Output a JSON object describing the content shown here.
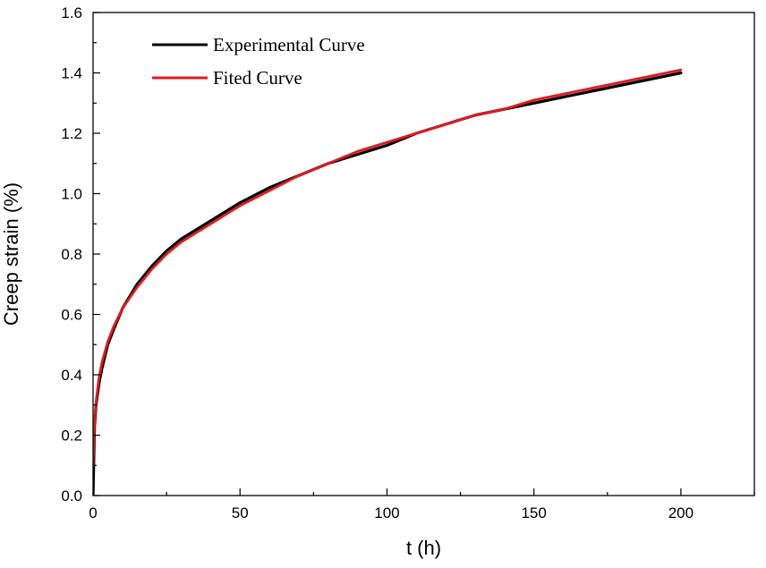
{
  "chart_data": {
    "type": "line",
    "title": "",
    "xlabel": "t (h)",
    "ylabel": "Creep strain (%)",
    "xlim": [
      0,
      225
    ],
    "ylim": [
      0,
      1.6
    ],
    "x_ticks": [
      0,
      50,
      100,
      150,
      200
    ],
    "x_tick_labels": [
      "0",
      "50",
      "100",
      "150",
      "200"
    ],
    "y_ticks": [
      0.0,
      0.2,
      0.4,
      0.6,
      0.8,
      1.0,
      1.2,
      1.4,
      1.6
    ],
    "y_tick_labels": [
      "0.0",
      "0.2",
      "0.4",
      "0.6",
      "0.8",
      "1.0",
      "1.2",
      "1.4",
      "1.6"
    ],
    "grid": false,
    "legend_position": "top-left",
    "series": [
      {
        "name": "Experimental Curve",
        "color": "#000000",
        "x": [
          0,
          0.5,
          1,
          2,
          3,
          5,
          7,
          10,
          15,
          20,
          25,
          30,
          40,
          50,
          60,
          70,
          80,
          90,
          100,
          110,
          120,
          130,
          140,
          150,
          160,
          170,
          180,
          190,
          200
        ],
        "y": [
          0.0,
          0.23,
          0.3,
          0.37,
          0.42,
          0.5,
          0.55,
          0.62,
          0.7,
          0.76,
          0.81,
          0.85,
          0.91,
          0.97,
          1.02,
          1.06,
          1.1,
          1.13,
          1.16,
          1.2,
          1.23,
          1.26,
          1.28,
          1.3,
          1.32,
          1.34,
          1.36,
          1.38,
          1.4
        ]
      },
      {
        "name": "Fited Curve",
        "color": "#e41a1c",
        "x": [
          0,
          0.5,
          1,
          2,
          3,
          5,
          7,
          10,
          15,
          20,
          25,
          30,
          40,
          50,
          60,
          70,
          80,
          90,
          100,
          110,
          120,
          130,
          140,
          150,
          160,
          170,
          180,
          190,
          200
        ],
        "y": [
          0.1,
          0.25,
          0.31,
          0.39,
          0.44,
          0.51,
          0.56,
          0.62,
          0.69,
          0.75,
          0.8,
          0.84,
          0.9,
          0.96,
          1.01,
          1.06,
          1.1,
          1.14,
          1.17,
          1.2,
          1.23,
          1.26,
          1.28,
          1.31,
          1.33,
          1.35,
          1.37,
          1.39,
          1.41
        ]
      }
    ]
  }
}
